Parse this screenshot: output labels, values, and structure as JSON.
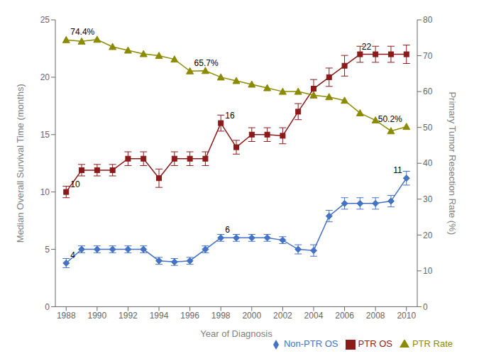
{
  "chart_data": {
    "type": "line",
    "x_label": "Year of Diagnosis",
    "y_label": "Median Overall Survival Time (months)",
    "y2_label": "Primary Tumor Resection Rate (%)",
    "x": [
      1988,
      1989,
      1990,
      1991,
      1992,
      1993,
      1994,
      1995,
      1996,
      1997,
      1998,
      1999,
      2000,
      2001,
      2002,
      2003,
      2004,
      2005,
      2006,
      2007,
      2008,
      2009,
      2010
    ],
    "xlim": [
      1987.3,
      2010.7
    ],
    "xticks": [
      1988,
      1990,
      1992,
      1994,
      1996,
      1998,
      2000,
      2002,
      2004,
      2006,
      2008,
      2010
    ],
    "ylim": [
      0,
      25
    ],
    "yticks": [
      0,
      5,
      10,
      15,
      20,
      25
    ],
    "y2lim": [
      0,
      80
    ],
    "y2ticks": [
      0,
      10,
      20,
      30,
      40,
      50,
      60,
      70,
      80
    ],
    "grid": false,
    "legend": "lower right",
    "series": [
      {
        "name": "Non-PTR OS",
        "color": "#4472C4",
        "marker": "diamond",
        "values": [
          3.8,
          5.0,
          5.0,
          5.0,
          5.0,
          5.0,
          4.0,
          3.9,
          4.0,
          5.0,
          6.0,
          6.0,
          6.0,
          6.0,
          5.8,
          5.0,
          4.9,
          7.9,
          9.0,
          9.0,
          9.0,
          9.2,
          11.2
        ],
        "errors": [
          0.4,
          0.3,
          0.3,
          0.3,
          0.3,
          0.3,
          0.3,
          0.3,
          0.3,
          0.3,
          0.3,
          0.3,
          0.3,
          0.3,
          0.3,
          0.4,
          0.5,
          0.5,
          0.5,
          0.5,
          0.5,
          0.5,
          0.6
        ]
      },
      {
        "name": "PTR OS",
        "color": "#8B1A1A",
        "marker": "square",
        "values": [
          10.0,
          11.9,
          11.9,
          11.9,
          12.9,
          12.9,
          11.2,
          12.9,
          12.9,
          12.9,
          16.0,
          13.9,
          15.0,
          15.0,
          14.9,
          17.0,
          19.0,
          20.0,
          21.0,
          22.0,
          22.0,
          22.0,
          22.0
        ],
        "errors": [
          0.5,
          0.5,
          0.5,
          0.5,
          0.6,
          0.6,
          0.8,
          0.6,
          0.6,
          0.6,
          0.7,
          0.6,
          0.6,
          0.6,
          0.7,
          0.7,
          0.8,
          0.8,
          0.9,
          0.7,
          0.7,
          0.7,
          0.8
        ]
      },
      {
        "name": "PTR Rate",
        "color": "#8B8B00",
        "marker": "triangle",
        "axis": "y2",
        "values": [
          74.4,
          74.0,
          74.5,
          72.5,
          71.5,
          70.5,
          70.0,
          69.0,
          65.7,
          65.8,
          64.0,
          63.0,
          62.0,
          61.0,
          60.0,
          60.0,
          59.0,
          58.5,
          57.5,
          54.0,
          52.0,
          49.0,
          50.2
        ]
      }
    ],
    "annotations": [
      {
        "text": "74.4%",
        "x": 1988,
        "y": 74.4,
        "axis": "y2"
      },
      {
        "text": "65.7%",
        "x": 1996,
        "y": 65.7,
        "axis": "y2"
      },
      {
        "text": "50.2%",
        "x": 2010,
        "y": 50.2,
        "axis": "y2"
      },
      {
        "text": "10",
        "x": 1988,
        "y": 10.0
      },
      {
        "text": "16",
        "x": 1998,
        "y": 16.0
      },
      {
        "text": "22",
        "x": 2008,
        "y": 22.0
      },
      {
        "text": "4",
        "x": 1988,
        "y": 3.8
      },
      {
        "text": "6",
        "x": 1998,
        "y": 6.0
      },
      {
        "text": "11",
        "x": 2010,
        "y": 11.2
      }
    ]
  }
}
